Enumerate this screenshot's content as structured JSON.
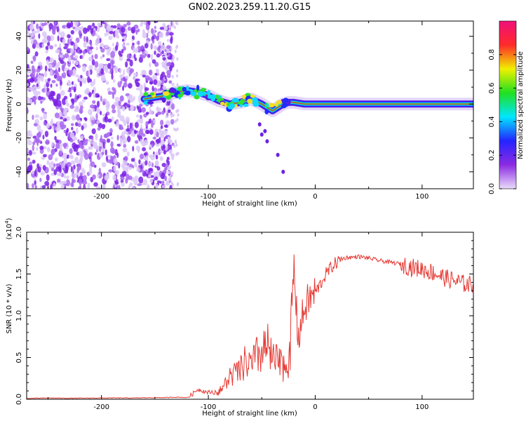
{
  "title": "GN02.2023.259.11.20.G15",
  "colors": {
    "snr_line": "#e53b35",
    "scatter": "#8a2be2",
    "track_core": "#e8283c",
    "axis": "#000000"
  },
  "chart_data": [
    {
      "type": "heatmap",
      "title": "GN02.2023.259.11.20.G15",
      "xlabel": "Height of straight line (km)",
      "ylabel": "Frequency (Hz)",
      "xlim": [
        -270,
        148
      ],
      "ylim": [
        -50,
        49
      ],
      "xticks": [
        -200,
        -100,
        0,
        100
      ],
      "xtick_labels": [
        "-200",
        "-100",
        "0",
        "100"
      ],
      "yticks": [
        -40,
        -20,
        0,
        20,
        40
      ],
      "ytick_labels": [
        "-40",
        "-20",
        "0",
        "20",
        "40"
      ],
      "noise_region": {
        "x_range": [
          -270,
          -133
        ],
        "y_range": [
          -50,
          49
        ]
      },
      "signal_track": {
        "x": [
          -160,
          -150,
          -140,
          -130,
          -120,
          -110,
          -100,
          -90,
          -80,
          -70,
          -60,
          -50,
          -45,
          -40,
          -35,
          -30,
          -25,
          -20,
          -10,
          0,
          20,
          40,
          60,
          80,
          100,
          120,
          148
        ],
        "y": [
          3,
          4,
          5,
          7,
          8,
          7,
          5,
          2,
          0,
          1,
          3,
          0,
          -2,
          -4,
          -2,
          0,
          1,
          1,
          0,
          0,
          0,
          0,
          0,
          0,
          0,
          0,
          0
        ]
      },
      "colorbar": {
        "label": "Normalized spectral amplitude",
        "range": [
          0.0,
          1.0
        ],
        "ticks": [
          0.0,
          0.2,
          0.4,
          0.6,
          0.8
        ],
        "tick_labels": [
          "0.0",
          "0.2",
          "0.4",
          "0.6",
          "0.8"
        ],
        "colors": [
          "#e9dcfb",
          "#8b2be2",
          "#2424ff",
          "#00e6ff",
          "#20e020",
          "#f0f000",
          "#ff2a2a",
          "#f0107a"
        ]
      },
      "grid": false
    },
    {
      "type": "line",
      "xlabel": "Height of straight line (km)",
      "ylabel": "SNR (10 * v/v)",
      "y_multiplier_label": "(x10",
      "y_multiplier_exponent": "4",
      "y_multiplier_suffix": ")",
      "xlim": [
        -270,
        148
      ],
      "ylim": [
        0.0,
        2.0
      ],
      "xticks": [
        -200,
        -100,
        0,
        100
      ],
      "xtick_labels": [
        "-200",
        "-100",
        "0",
        "100"
      ],
      "yticks": [
        0.0,
        0.5,
        1.0,
        1.5,
        2.0
      ],
      "ytick_labels": [
        "0.0",
        "0.5",
        "1.0",
        "1.5",
        "2.0"
      ],
      "series": [
        {
          "x": [
            -270,
            -250,
            -230,
            -210,
            -190,
            -170,
            -150,
            -140,
            -130,
            -120,
            -115,
            -110,
            -100,
            -90,
            -85,
            -80,
            -75,
            -70,
            -65,
            -60,
            -55,
            -50,
            -45,
            -40,
            -35,
            -30,
            -25,
            -22,
            -20,
            -18,
            -16,
            -14,
            -12,
            -10,
            -8,
            -5,
            0,
            5,
            10,
            15,
            20,
            25,
            30,
            35,
            40,
            45,
            50,
            60,
            70,
            80,
            90,
            100,
            110,
            120,
            130,
            140,
            148
          ],
          "y": [
            0.01,
            0.015,
            0.012,
            0.014,
            0.016,
            0.015,
            0.02,
            0.02,
            0.025,
            0.02,
            0.06,
            0.12,
            0.08,
            0.1,
            0.18,
            0.3,
            0.34,
            0.38,
            0.5,
            0.44,
            0.56,
            0.62,
            0.7,
            0.52,
            0.48,
            0.45,
            0.5,
            0.98,
            1.65,
            1.15,
            0.72,
            0.85,
            0.98,
            1.08,
            1.15,
            1.2,
            1.28,
            1.38,
            1.5,
            1.58,
            1.64,
            1.68,
            1.7,
            1.7,
            1.71,
            1.7,
            1.69,
            1.66,
            1.64,
            1.62,
            1.58,
            1.56,
            1.52,
            1.46,
            1.42,
            1.38,
            1.37
          ]
        }
      ],
      "grid": false
    }
  ]
}
